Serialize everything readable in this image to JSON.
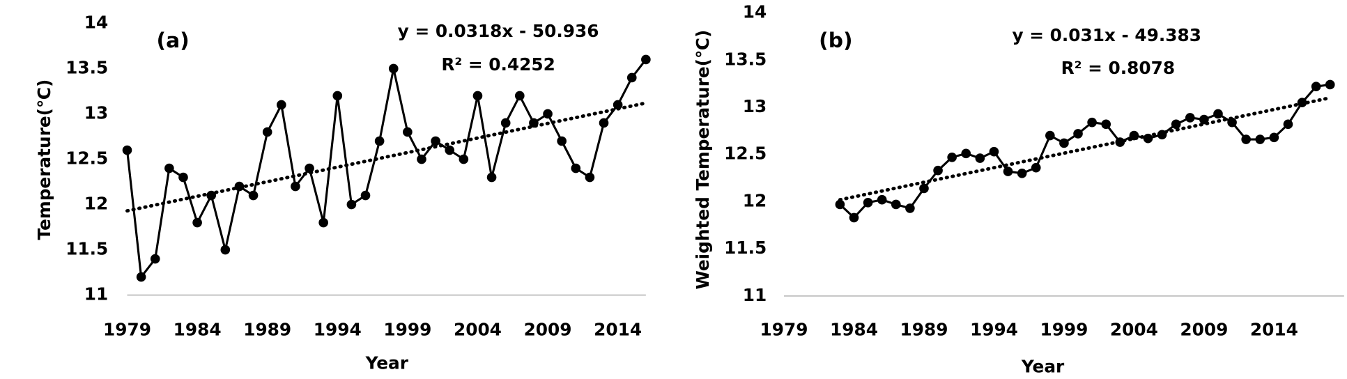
{
  "chart_data": [
    {
      "type": "line",
      "panel_label": "(a)",
      "equation": "y = 0.0318x - 50.936",
      "r_squared": "R² = 0.4252",
      "xlabel": "Year",
      "ylabel": "Temperature(℃)",
      "x": [
        1979,
        1980,
        1981,
        1982,
        1983,
        1984,
        1985,
        1986,
        1987,
        1988,
        1989,
        1990,
        1991,
        1992,
        1993,
        1994,
        1995,
        1996,
        1997,
        1998,
        1999,
        2000,
        2001,
        2002,
        2003,
        2004,
        2005,
        2006,
        2007,
        2008,
        2009,
        2010,
        2011,
        2012,
        2013,
        2014,
        2015,
        2016
      ],
      "values": [
        12.6,
        11.2,
        11.4,
        12.4,
        12.3,
        11.8,
        12.1,
        11.5,
        12.2,
        12.1,
        12.8,
        13.1,
        12.2,
        12.4,
        11.8,
        13.2,
        12.0,
        12.1,
        12.7,
        13.5,
        12.8,
        12.5,
        12.7,
        12.6,
        12.5,
        13.2,
        12.3,
        12.9,
        13.2,
        12.9,
        13.0,
        12.7,
        12.4,
        12.3,
        12.9,
        13.1,
        13.4,
        13.6
      ],
      "color": "#000000",
      "trendline": {
        "x": [
          1979,
          2016
        ],
        "values": [
          11.93,
          13.12
        ]
      },
      "xlim": [
        1979,
        2016
      ],
      "xticks": [
        1979,
        1984,
        1989,
        1994,
        1999,
        2004,
        2009,
        2014
      ],
      "ylim": [
        11,
        14
      ],
      "yticks": [
        11,
        {
          "value": 11.5,
          "label": "11.5"
        },
        12,
        {
          "value": 12.5,
          "label": "12.5"
        },
        13,
        {
          "value": 13.5,
          "label": "13.5"
        },
        14
      ]
    },
    {
      "type": "line",
      "panel_label": "(b)",
      "equation": "y = 0.031x - 49.383",
      "r_squared": "R² = 0.8078",
      "xlabel": "Year",
      "ylabel": "Weighted Temperature(℃)",
      "x": [
        1983,
        1984,
        1985,
        1986,
        1987,
        1988,
        1989,
        1990,
        1991,
        1992,
        1993,
        1994,
        1995,
        1996,
        1997,
        1998,
        1999,
        2000,
        2001,
        2002,
        2003,
        2004,
        2005,
        2006,
        2007,
        2008,
        2009,
        2010,
        2011,
        2012,
        2013,
        2014,
        2015,
        2016,
        2017,
        2018
      ],
      "values": [
        11.97,
        11.83,
        11.99,
        12.02,
        11.97,
        11.93,
        12.14,
        12.33,
        12.47,
        12.51,
        12.46,
        12.53,
        12.32,
        12.3,
        12.36,
        12.7,
        12.62,
        12.72,
        12.84,
        12.82,
        12.63,
        12.7,
        12.67,
        12.71,
        12.82,
        12.89,
        12.87,
        12.93,
        12.84,
        12.66,
        12.66,
        12.68,
        12.82,
        13.05,
        13.22,
        13.24
      ],
      "color": "#000000",
      "trendline": {
        "x": [
          1983,
          2018
        ],
        "values": [
          12.02,
          13.1
        ]
      },
      "xlim": [
        1979,
        2019
      ],
      "xticks": [
        1979,
        1984,
        1989,
        1994,
        1999,
        2004,
        2009,
        2014
      ],
      "ylim": [
        11,
        14
      ],
      "yticks": [
        11,
        {
          "value": 11.5,
          "label": "11.5"
        },
        12,
        {
          "value": 12.5,
          "label": "12.5"
        },
        13,
        {
          "value": 13.5,
          "label": "13.5"
        },
        14
      ]
    }
  ]
}
